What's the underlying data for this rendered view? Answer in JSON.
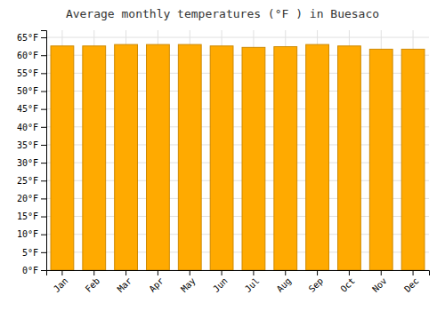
{
  "chart_data": {
    "type": "bar",
    "title": "Average monthly temperatures (°F ) in Buesaco",
    "categories": [
      "Jan",
      "Feb",
      "Mar",
      "Apr",
      "May",
      "Jun",
      "Jul",
      "Aug",
      "Sep",
      "Oct",
      "Nov",
      "Dec"
    ],
    "values": [
      62.6,
      62.6,
      63.0,
      63.0,
      63.0,
      62.6,
      62.2,
      62.4,
      63.0,
      62.6,
      61.7,
      61.7
    ],
    "color": "#FFAA00",
    "ylim": [
      0,
      67
    ],
    "yticks": [
      {
        "value": 0,
        "label": "0°F"
      },
      {
        "value": 5,
        "label": "5°F"
      },
      {
        "value": 10,
        "label": "10°F"
      },
      {
        "value": 15,
        "label": "15°F"
      },
      {
        "value": 20,
        "label": "20°F"
      },
      {
        "value": 25,
        "label": "25°F"
      },
      {
        "value": 30,
        "label": "30°F"
      },
      {
        "value": 35,
        "label": "35°F"
      },
      {
        "value": 40,
        "label": "40°F"
      },
      {
        "value": 45,
        "label": "45°F"
      },
      {
        "value": 50,
        "label": "50°F"
      },
      {
        "value": 55,
        "label": "55°F"
      },
      {
        "value": 60,
        "label": "60°F"
      },
      {
        "value": 65,
        "label": "65°F"
      }
    ],
    "grid": true
  }
}
